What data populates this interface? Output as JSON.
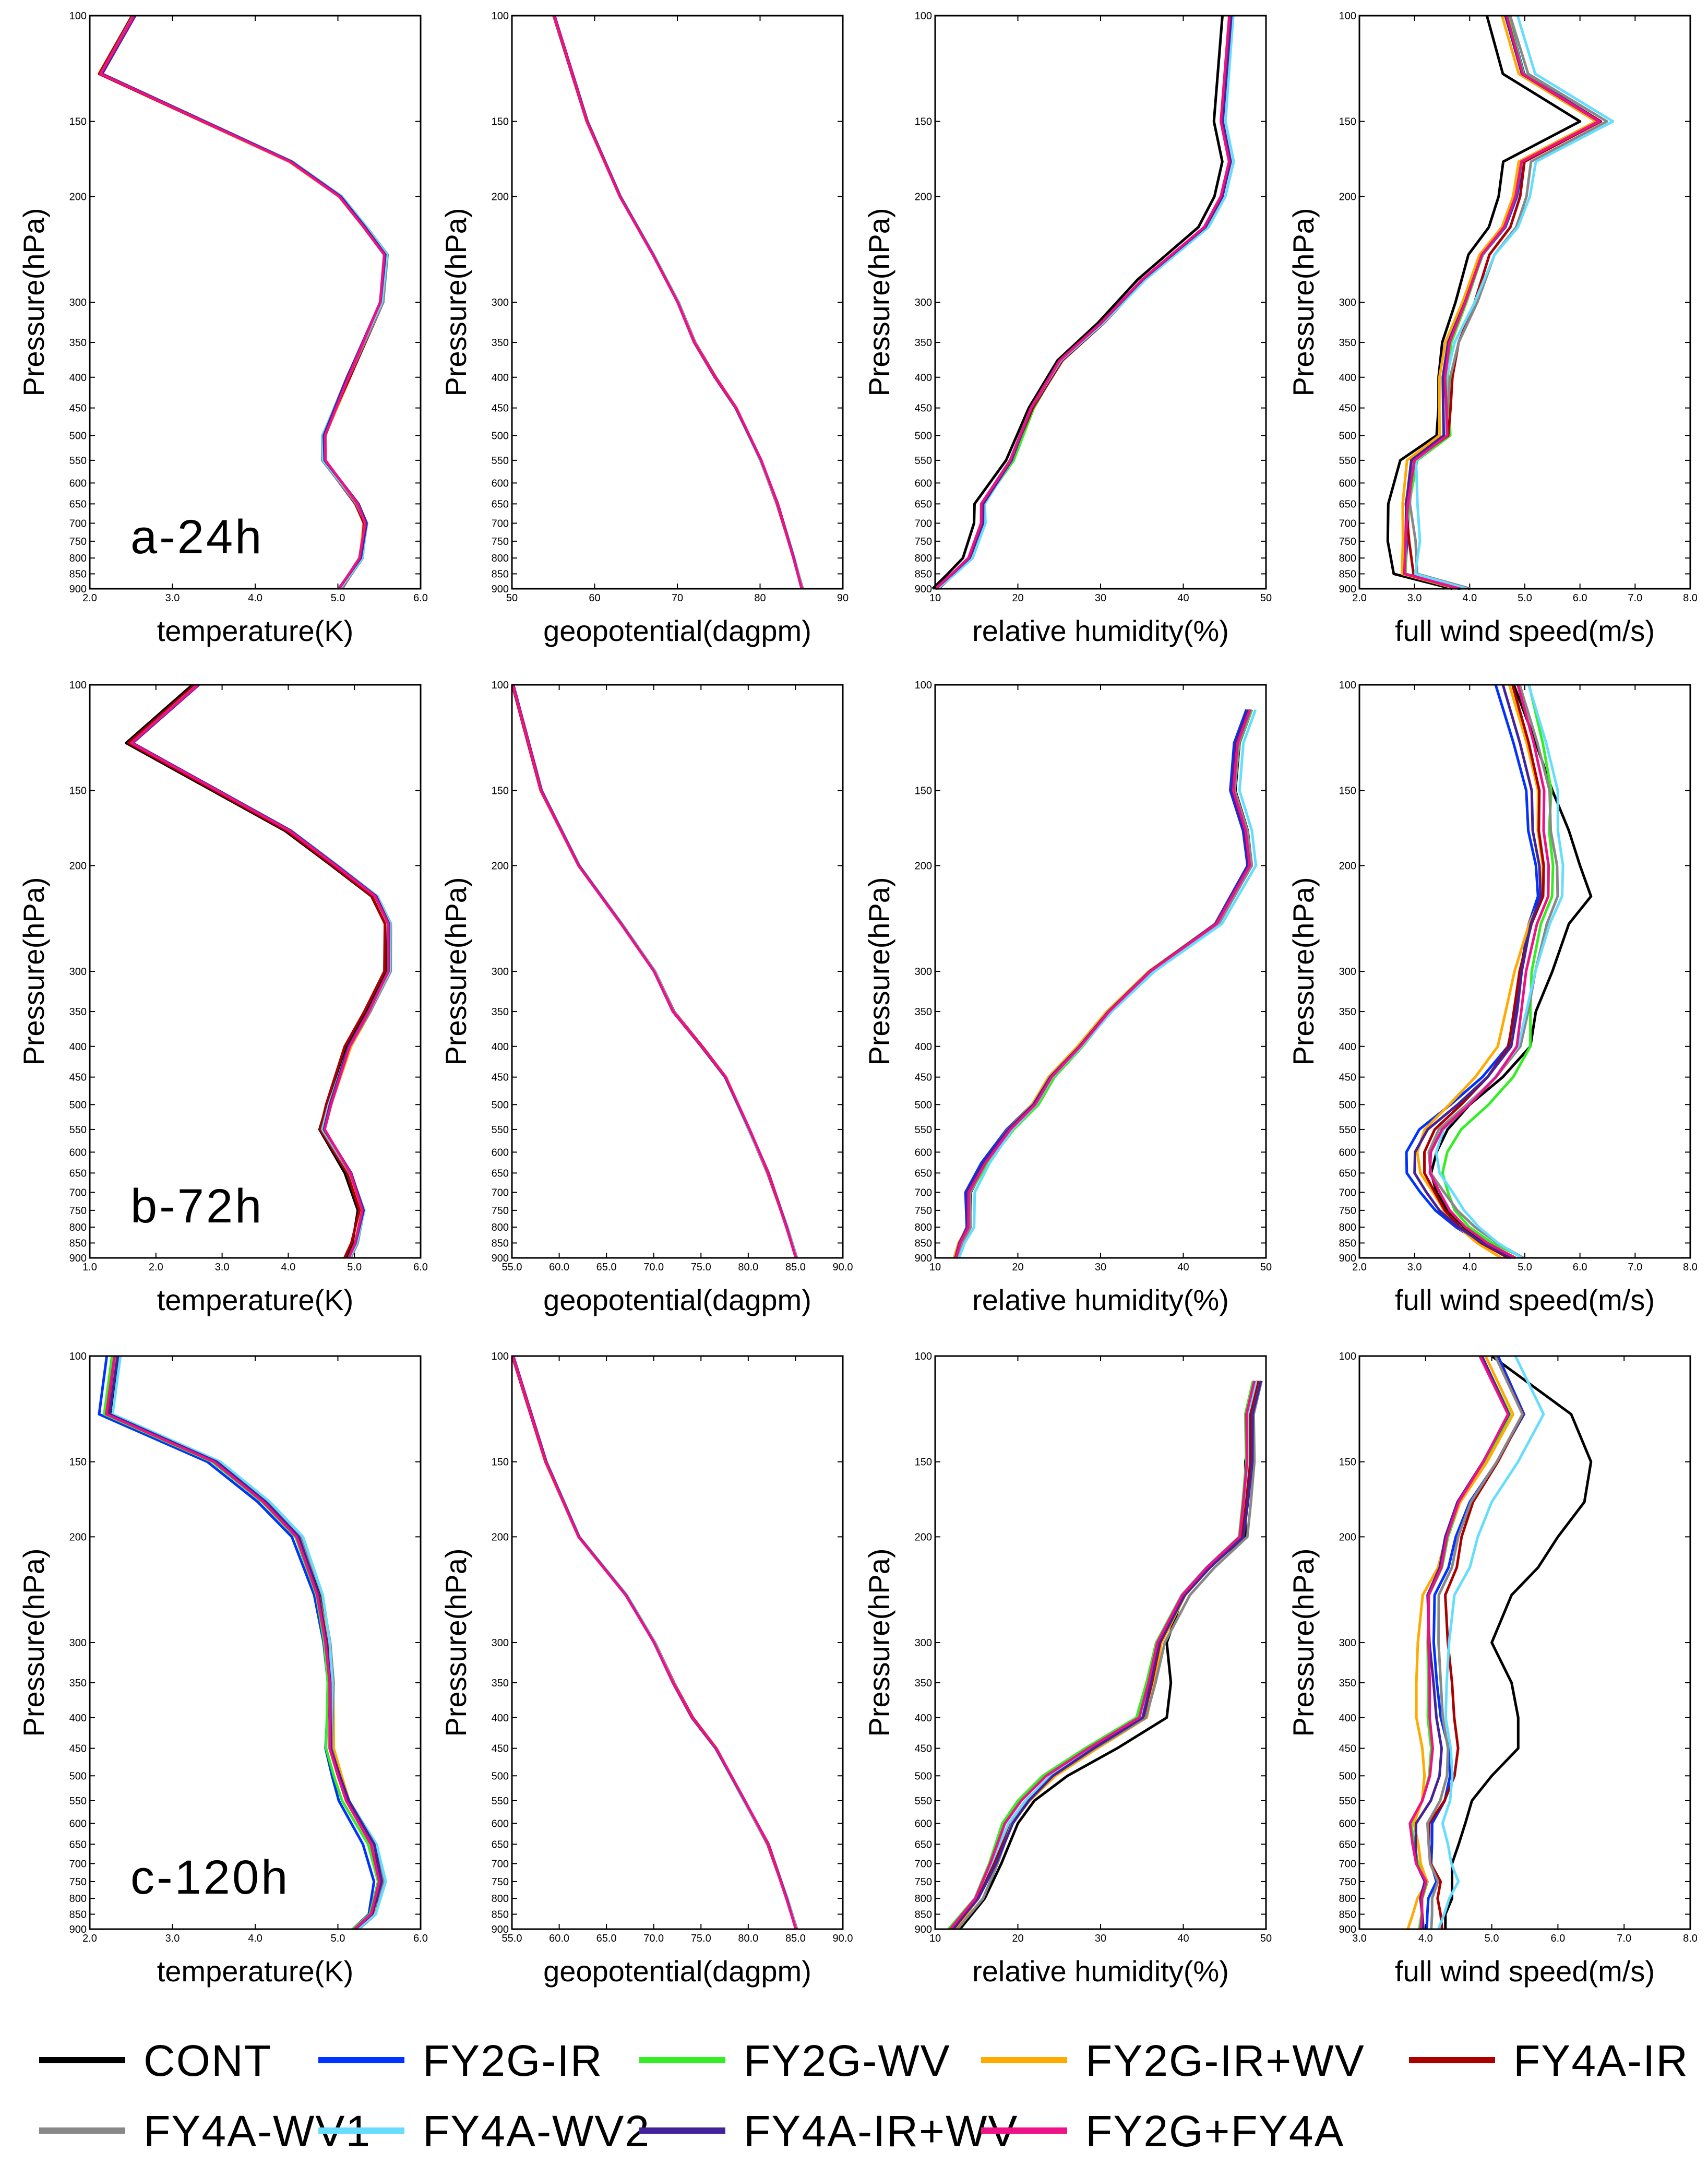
{
  "figure": {
    "ylabel": "Pressure(hPa)",
    "pressure_levels": [
      100,
      150,
      200,
      300,
      350,
      400,
      450,
      500,
      550,
      600,
      650,
      700,
      750,
      800,
      850,
      900
    ],
    "column_xlabels": [
      "temperature(K)",
      "geopotential(dagpm)",
      "relative humidity(%)",
      "full wind speed(m/s)"
    ],
    "row_tags": [
      "a-24h",
      "b-72h",
      "c-120h"
    ]
  },
  "legend": {
    "entries": [
      {
        "name": "CONT",
        "color": "#000000"
      },
      {
        "name": "FY2G-IR",
        "color": "#0033ff"
      },
      {
        "name": "FY2G-WV",
        "color": "#33ee22"
      },
      {
        "name": "FY2G-IR+WV",
        "color": "#ffaa00"
      },
      {
        "name": "FY4A-IR",
        "color": "#aa0000"
      },
      {
        "name": "FY4A-WV1",
        "color": "#888888"
      },
      {
        "name": "FY4A-WV2",
        "color": "#66ddff"
      },
      {
        "name": "FY4A-IR+WV",
        "color": "#442299"
      },
      {
        "name": "FY2G+FY4A",
        "color": "#ee1188"
      }
    ]
  },
  "chart_data": [
    {
      "type": "line",
      "row": 0,
      "col": 0,
      "tag": "a-24h",
      "xlabel": "temperature(K)",
      "ylabel": "Pressure(hPa)",
      "xlim": [
        2.0,
        6.0
      ],
      "xticks": [
        "2.0",
        "3.0",
        "4.0",
        "5.0",
        "6.0"
      ],
      "profile": [
        [
          2.5,
          100
        ],
        [
          2.1,
          125
        ],
        [
          4.4,
          175
        ],
        [
          5.0,
          200
        ],
        [
          5.3,
          225
        ],
        [
          5.55,
          250
        ],
        [
          5.5,
          300
        ],
        [
          5.1,
          400
        ],
        [
          4.8,
          500
        ],
        [
          4.8,
          550
        ],
        [
          5.2,
          650
        ],
        [
          5.3,
          700
        ],
        [
          5.25,
          800
        ],
        [
          5.0,
          900
        ]
      ],
      "spread": [
        0.05,
        0.05,
        0.05,
        0.05,
        0.05,
        0.05,
        0.05,
        0.05,
        0.05
      ]
    },
    {
      "type": "line",
      "row": 0,
      "col": 1,
      "xlabel": "geopotential(dagpm)",
      "ylabel": "Pressure(hPa)",
      "xlim": [
        50,
        90
      ],
      "xticks": [
        "50",
        "60",
        "70",
        "80",
        "90"
      ],
      "profile": [
        [
          55,
          100
        ],
        [
          59,
          150
        ],
        [
          63,
          200
        ],
        [
          67,
          250
        ],
        [
          70,
          300
        ],
        [
          72,
          350
        ],
        [
          74.5,
          400
        ],
        [
          77,
          450
        ],
        [
          80,
          550
        ],
        [
          82,
          650
        ],
        [
          84,
          800
        ],
        [
          85,
          900
        ]
      ],
      "spread": [
        0.15,
        0.15,
        0.15,
        0.15,
        0.15,
        0.15,
        0.15,
        0.15,
        0.15
      ]
    },
    {
      "type": "line",
      "row": 0,
      "col": 2,
      "xlabel": "relative humidity(%)",
      "ylabel": "Pressure(hPa)",
      "xlim": [
        10,
        50
      ],
      "xticks": [
        "10",
        "20",
        "30",
        "40",
        "50"
      ],
      "profile": [
        [
          45.5,
          100
        ],
        [
          44.5,
          150
        ],
        [
          45.5,
          175
        ],
        [
          44.5,
          200
        ],
        [
          42.5,
          225
        ],
        [
          35,
          275
        ],
        [
          30,
          325
        ],
        [
          25,
          375
        ],
        [
          21.5,
          450
        ],
        [
          19,
          550
        ],
        [
          15.5,
          650
        ],
        [
          15.5,
          700
        ],
        [
          14,
          800
        ],
        [
          12,
          850
        ],
        [
          10,
          900
        ]
      ],
      "spread": [
        -0.8,
        0.3,
        0.5,
        0.2,
        0.4,
        0.2,
        0.6,
        0.3,
        0.1
      ]
    },
    {
      "type": "line",
      "row": 0,
      "col": 3,
      "xlabel": "full wind speed(m/s)",
      "ylabel": "Pressure(hPa)",
      "xlim": [
        2.0,
        8.0
      ],
      "xticks": [
        "2.0",
        "3.0",
        "4.0",
        "5.0",
        "6.0",
        "7.0",
        "8.0"
      ],
      "profile": [
        [
          4.6,
          100
        ],
        [
          4.9,
          125
        ],
        [
          6.3,
          150
        ],
        [
          4.9,
          175
        ],
        [
          4.8,
          200
        ],
        [
          4.6,
          225
        ],
        [
          4.2,
          250
        ],
        [
          3.9,
          300
        ],
        [
          3.6,
          350
        ],
        [
          3.5,
          400
        ],
        [
          3.5,
          450
        ],
        [
          3.5,
          500
        ],
        [
          2.9,
          550
        ],
        [
          2.8,
          650
        ],
        [
          2.8,
          750
        ],
        [
          2.8,
          850
        ],
        [
          3.8,
          900
        ]
      ],
      "spread": [
        -0.3,
        0.1,
        0.15,
        -0.05,
        0.2,
        0.25,
        0.3,
        0.05,
        0.1
      ]
    },
    {
      "type": "line",
      "row": 1,
      "col": 0,
      "tag": "b-72h",
      "xlabel": "temperature(K)",
      "ylabel": "Pressure(hPa)",
      "xlim": [
        1.0,
        6.0
      ],
      "xticks": [
        "1.0",
        "2.0",
        "3.0",
        "4.0",
        "5.0",
        "6.0"
      ],
      "profile": [
        [
          2.6,
          100
        ],
        [
          1.6,
          125
        ],
        [
          2.9,
          150
        ],
        [
          4.0,
          175
        ],
        [
          4.7,
          200
        ],
        [
          5.3,
          225
        ],
        [
          5.5,
          250
        ],
        [
          5.5,
          300
        ],
        [
          5.2,
          350
        ],
        [
          4.9,
          400
        ],
        [
          4.6,
          500
        ],
        [
          4.5,
          550
        ],
        [
          4.9,
          650
        ],
        [
          5.1,
          750
        ],
        [
          5.0,
          850
        ],
        [
          4.9,
          900
        ]
      ],
      "spread": [
        -0.05,
        0.05,
        0.05,
        0.05,
        -0.05,
        0.05,
        0.05,
        0.05,
        0.05
      ]
    },
    {
      "type": "line",
      "row": 1,
      "col": 1,
      "xlabel": "geopotential(dagpm)",
      "ylabel": "Pressure(hPa)",
      "xlim": [
        55.0,
        90.0
      ],
      "xticks": [
        "55.0",
        "60.0",
        "65.0",
        "70.0",
        "75.0",
        "80.0",
        "85.0",
        "90.0"
      ],
      "profile": [
        [
          55,
          100
        ],
        [
          58,
          150
        ],
        [
          62,
          200
        ],
        [
          66.5,
          250
        ],
        [
          70,
          300
        ],
        [
          72,
          350
        ],
        [
          75,
          400
        ],
        [
          77.5,
          450
        ],
        [
          80,
          550
        ],
        [
          82,
          650
        ],
        [
          84,
          800
        ],
        [
          85,
          900
        ]
      ],
      "spread": [
        0.15,
        0.15,
        0.15,
        0.15,
        0.15,
        0.15,
        0.15,
        0.15,
        0.15
      ]
    },
    {
      "type": "line",
      "row": 1,
      "col": 2,
      "xlabel": "relative humidity(%)",
      "ylabel": "Pressure(hPa)",
      "xlim": [
        10,
        50
      ],
      "xticks": [
        "10",
        "20",
        "30",
        "40",
        "50"
      ],
      "profile": [
        [
          48,
          110
        ],
        [
          46.5,
          125
        ],
        [
          46,
          150
        ],
        [
          47.5,
          175
        ],
        [
          48,
          200
        ],
        [
          44,
          250
        ],
        [
          36,
          300
        ],
        [
          31,
          350
        ],
        [
          27.5,
          400
        ],
        [
          24,
          450
        ],
        [
          22,
          500
        ],
        [
          19,
          550
        ],
        [
          16,
          625
        ],
        [
          14,
          700
        ],
        [
          14,
          800
        ],
        [
          13,
          850
        ],
        [
          12.5,
          900
        ]
      ],
      "spread": [
        0.3,
        -0.4,
        0.5,
        -0.3,
        0.2,
        0.3,
        0.8,
        -0.2,
        0.1
      ]
    },
    {
      "type": "line",
      "row": 1,
      "col": 3,
      "xlabel": "full wind speed(m/s)",
      "ylabel": "Pressure(hPa)",
      "xlim": [
        2.0,
        8.0
      ],
      "xticks": [
        "2.0",
        "3.0",
        "4.0",
        "5.0",
        "6.0",
        "7.0",
        "8.0"
      ],
      "profile": [
        [
          4.8,
          100
        ],
        [
          5.1,
          125
        ],
        [
          5.3,
          150
        ],
        [
          5.3,
          175
        ],
        [
          5.4,
          200
        ],
        [
          5.4,
          225
        ],
        [
          5.2,
          250
        ],
        [
          5.0,
          300
        ],
        [
          4.9,
          350
        ],
        [
          4.8,
          400
        ],
        [
          4.4,
          450
        ],
        [
          3.9,
          500
        ],
        [
          3.4,
          550
        ],
        [
          3.2,
          600
        ],
        [
          3.2,
          650
        ],
        [
          3.4,
          700
        ],
        [
          3.6,
          750
        ],
        [
          3.9,
          800
        ],
        [
          4.3,
          850
        ],
        [
          4.8,
          900
        ]
      ],
      "spread": [
        0.1,
        -0.35,
        0.45,
        -0.3,
        -0.1,
        0.2,
        0.3,
        -0.2,
        0.1
      ],
      "cont_profile": [
        [
          4.8,
          100
        ],
        [
          5.2,
          125
        ],
        [
          5.5,
          150
        ],
        [
          5.8,
          175
        ],
        [
          6.0,
          200
        ],
        [
          6.2,
          225
        ],
        [
          5.8,
          250
        ],
        [
          5.5,
          300
        ],
        [
          5.2,
          350
        ],
        [
          5.1,
          400
        ],
        [
          4.6,
          450
        ],
        [
          4.0,
          500
        ],
        [
          3.6,
          550
        ],
        [
          3.4,
          600
        ],
        [
          3.3,
          650
        ],
        [
          3.4,
          700
        ],
        [
          3.6,
          750
        ],
        [
          3.9,
          800
        ],
        [
          4.3,
          850
        ],
        [
          4.8,
          900
        ]
      ]
    },
    {
      "type": "line",
      "row": 2,
      "col": 0,
      "tag": "c-120h",
      "xlabel": "temperature(K)",
      "ylabel": "Pressure(hPa)",
      "xlim": [
        2.0,
        6.0
      ],
      "xticks": [
        "2.0",
        "3.0",
        "4.0",
        "5.0",
        "6.0"
      ],
      "profile": [
        [
          2.3,
          100
        ],
        [
          2.2,
          125
        ],
        [
          3.5,
          150
        ],
        [
          4.1,
          175
        ],
        [
          4.5,
          200
        ],
        [
          4.75,
          250
        ],
        [
          4.85,
          300
        ],
        [
          4.9,
          350
        ],
        [
          4.9,
          400
        ],
        [
          4.9,
          450
        ],
        [
          5.0,
          500
        ],
        [
          5.1,
          550
        ],
        [
          5.4,
          650
        ],
        [
          5.5,
          750
        ],
        [
          5.4,
          850
        ],
        [
          5.2,
          900
        ]
      ],
      "spread": [
        0.05,
        -0.1,
        -0.05,
        0.05,
        0.02,
        0.06,
        0.08,
        0.04,
        0.0
      ]
    },
    {
      "type": "line",
      "row": 2,
      "col": 1,
      "xlabel": "geopotential(dagpm)",
      "ylabel": "Pressure(hPa)",
      "xlim": [
        55.0,
        90.0
      ],
      "xticks": [
        "55.0",
        "60.0",
        "65.0",
        "70.0",
        "75.0",
        "80.0",
        "85.0",
        "90.0"
      ],
      "profile": [
        [
          55,
          100
        ],
        [
          58.5,
          150
        ],
        [
          62,
          200
        ],
        [
          67,
          250
        ],
        [
          70,
          300
        ],
        [
          72,
          350
        ],
        [
          74,
          400
        ],
        [
          76.5,
          450
        ],
        [
          79.5,
          550
        ],
        [
          82,
          650
        ],
        [
          84,
          800
        ],
        [
          85,
          900
        ]
      ],
      "spread": [
        0.15,
        0.15,
        0.15,
        0.15,
        0.15,
        0.15,
        0.15,
        0.15,
        0.15
      ]
    },
    {
      "type": "line",
      "row": 2,
      "col": 2,
      "xlabel": "relative humidity(%)",
      "ylabel": "Pressure(hPa)",
      "xlim": [
        10,
        50
      ],
      "xticks": [
        "10",
        "20",
        "30",
        "40",
        "50"
      ],
      "profile": [
        [
          49,
          110
        ],
        [
          48,
          125
        ],
        [
          48,
          150
        ],
        [
          47.5,
          175
        ],
        [
          47,
          200
        ],
        [
          43,
          225
        ],
        [
          40,
          250
        ],
        [
          37,
          300
        ],
        [
          36,
          350
        ],
        [
          35,
          400
        ],
        [
          29,
          450
        ],
        [
          24,
          500
        ],
        [
          21,
          550
        ],
        [
          19,
          600
        ],
        [
          17,
          700
        ],
        [
          15,
          800
        ],
        [
          12,
          900
        ]
      ],
      "spread": [
        -0.3,
        0.3,
        -1.0,
        0.6,
        0.2,
        0.8,
        -0.2,
        0.4,
        -0.6
      ],
      "cont_profile": [
        [
          49,
          110
        ],
        [
          48.5,
          125
        ],
        [
          47.5,
          150
        ],
        [
          47.5,
          175
        ],
        [
          47.5,
          200
        ],
        [
          43,
          225
        ],
        [
          40,
          250
        ],
        [
          38,
          300
        ],
        [
          38.5,
          350
        ],
        [
          38,
          400
        ],
        [
          32,
          450
        ],
        [
          26,
          500
        ],
        [
          22,
          550
        ],
        [
          20,
          600
        ],
        [
          18,
          700
        ],
        [
          16,
          800
        ],
        [
          13,
          900
        ]
      ]
    },
    {
      "type": "line",
      "row": 2,
      "col": 3,
      "xlabel": "full wind speed(m/s)",
      "ylabel": "Pressure(hPa)",
      "xlim": [
        3.0,
        8.0
      ],
      "xticks": [
        "3.0",
        "4.0",
        "5.0",
        "6.0",
        "7.0",
        "8.0"
      ],
      "profile": [
        [
          5.0,
          100
        ],
        [
          5.4,
          125
        ],
        [
          5.0,
          150
        ],
        [
          4.6,
          175
        ],
        [
          4.4,
          200
        ],
        [
          4.3,
          225
        ],
        [
          4.1,
          250
        ],
        [
          4.1,
          300
        ],
        [
          4.15,
          350
        ],
        [
          4.2,
          400
        ],
        [
          4.3,
          450
        ],
        [
          4.3,
          500
        ],
        [
          4.2,
          550
        ],
        [
          4.0,
          600
        ],
        [
          4.0,
          650
        ],
        [
          4.0,
          700
        ],
        [
          4.1,
          750
        ],
        [
          4.0,
          800
        ],
        [
          4.0,
          850
        ],
        [
          4.0,
          900
        ]
      ],
      "spread": [
        0.0,
        0.1,
        -0.25,
        -0.35,
        0.25,
        0.1,
        0.4,
        -0.15,
        -0.25
      ],
      "cont_profile": [
        [
          5.0,
          100
        ],
        [
          6.2,
          125
        ],
        [
          6.5,
          150
        ],
        [
          6.4,
          175
        ],
        [
          6.0,
          200
        ],
        [
          5.7,
          225
        ],
        [
          5.3,
          250
        ],
        [
          5.0,
          300
        ],
        [
          5.3,
          350
        ],
        [
          5.4,
          400
        ],
        [
          5.4,
          450
        ],
        [
          5.0,
          500
        ],
        [
          4.7,
          550
        ],
        [
          4.6,
          600
        ],
        [
          4.5,
          650
        ],
        [
          4.4,
          700
        ],
        [
          4.4,
          750
        ],
        [
          4.4,
          800
        ],
        [
          4.3,
          850
        ],
        [
          4.3,
          900
        ]
      ]
    }
  ]
}
